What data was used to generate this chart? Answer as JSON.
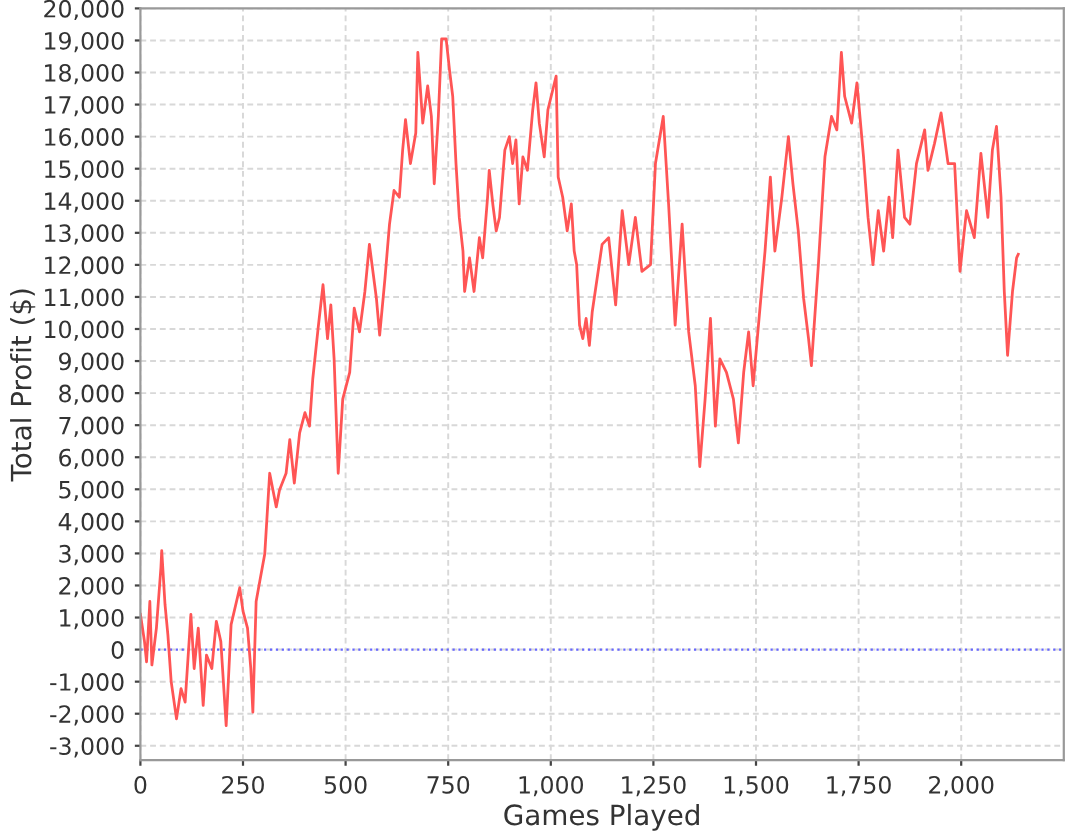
{
  "chart_data": {
    "type": "line",
    "xlabel": "Games Played",
    "ylabel": "Total Profit ($)",
    "xlim": [
      0,
      2250
    ],
    "ylim": [
      -3450,
      20000
    ],
    "xticks": [
      0,
      250,
      500,
      750,
      {
        "value": 1000,
        "label": "1,000"
      },
      {
        "value": 1250,
        "label": "1,250"
      },
      {
        "value": 1500,
        "label": "1,500"
      },
      {
        "value": 1750,
        "label": "1,750"
      },
      {
        "value": 2000,
        "label": "2,000"
      }
    ],
    "yticks": [
      {
        "value": -3000,
        "label": "-3,000"
      },
      {
        "value": -2000,
        "label": "-2,000"
      },
      {
        "value": -1000,
        "label": "-1,000"
      },
      0,
      {
        "value": 1000,
        "label": "1,000"
      },
      {
        "value": 2000,
        "label": "2,000"
      },
      {
        "value": 3000,
        "label": "3,000"
      },
      {
        "value": 4000,
        "label": "4,000"
      },
      {
        "value": 5000,
        "label": "5,000"
      },
      {
        "value": 6000,
        "label": "6,000"
      },
      {
        "value": 7000,
        "label": "7,000"
      },
      {
        "value": 8000,
        "label": "8,000"
      },
      {
        "value": 9000,
        "label": "9,000"
      },
      {
        "value": 10000,
        "label": "10,000"
      },
      {
        "value": 11000,
        "label": "11,000"
      },
      {
        "value": 12000,
        "label": "12,000"
      },
      {
        "value": 13000,
        "label": "13,000"
      },
      {
        "value": 14000,
        "label": "14,000"
      },
      {
        "value": 15000,
        "label": "15,000"
      },
      {
        "value": 16000,
        "label": "16,000"
      },
      {
        "value": 17000,
        "label": "17,000"
      },
      {
        "value": 18000,
        "label": "18,000"
      },
      {
        "value": 19000,
        "label": "19,000"
      },
      {
        "value": 20000,
        "label": "20,000"
      }
    ],
    "grid": true,
    "line_style": "solid",
    "marker": "none",
    "ref_lines": [
      {
        "axis": "y",
        "value": 0,
        "color": "#6666ff",
        "line_style": "dotted"
      }
    ],
    "series": [
      {
        "color": "#ff5555",
        "x": [
          0,
          10,
          15,
          23,
          28,
          39,
          50,
          52,
          60,
          67,
          75,
          88,
          99,
          109,
          123,
          131,
          141,
          153,
          161,
          174,
          185,
          196,
          209,
          221,
          242,
          250,
          261,
          269,
          274,
          282,
          291,
          303,
          315,
          331,
          339,
          355,
          364,
          375,
          388,
          401,
          412,
          420,
          433,
          445,
          456,
          464,
          472,
          482,
          493,
          510,
          521,
          534,
          547,
          558,
          575,
          583,
          596,
          607,
          618,
          631,
          639,
          646,
          658,
          671,
          676,
          688,
          700,
          709,
          716,
          726,
          734,
          745,
          753,
          761,
          769,
          777,
          786,
          790,
          802,
          813,
          826,
          834,
          846,
          850,
          859,
          867,
          875,
          888,
          899,
          907,
          915,
          923,
          932,
          943,
          956,
          964,
          972,
          984,
          993,
          1001,
          1013,
          1018,
          1029,
          1040,
          1050,
          1057,
          1063,
          1070,
          1078,
          1086,
          1094,
          1101,
          1125,
          1141,
          1158,
          1174,
          1190,
          1206,
          1222,
          1243,
          1255,
          1274,
          1287,
          1303,
          1320,
          1336,
          1352,
          1363,
          1376,
          1389,
          1401,
          1412,
          1428,
          1445,
          1457,
          1470,
          1482,
          1493,
          1506,
          1522,
          1535,
          1546,
          1563,
          1579,
          1590,
          1603,
          1616,
          1628,
          1635,
          1652,
          1668,
          1684,
          1697,
          1708,
          1716,
          1733,
          1746,
          1762,
          1773,
          1785,
          1798,
          1811,
          1824,
          1833,
          1846,
          1862,
          1875,
          1891,
          1911,
          1919,
          1935,
          1951,
          1968,
          1984,
          1997,
          2013,
          2032,
          2048,
          2065,
          2076,
          2086,
          2097,
          2105,
          2113,
          2125,
          2135,
          2139
        ],
        "values": [
          1100,
          250,
          -380,
          1500,
          -480,
          670,
          2560,
          3090,
          1400,
          460,
          -1000,
          -2160,
          -1220,
          -1640,
          1100,
          -590,
          670,
          -1740,
          -170,
          -590,
          880,
          250,
          -2370,
          780,
          1930,
          1200,
          670,
          -590,
          -1950,
          1500,
          2140,
          2980,
          5500,
          4450,
          4980,
          5500,
          6550,
          5190,
          6760,
          7390,
          6970,
          8440,
          10020,
          11380,
          9700,
          10750,
          9070,
          5500,
          7810,
          8650,
          10650,
          9910,
          11170,
          12640,
          10960,
          9810,
          11590,
          13270,
          14320,
          14110,
          15580,
          16530,
          15160,
          16110,
          18630,
          16420,
          17580,
          16630,
          14530,
          16630,
          19050,
          19050,
          18100,
          17260,
          15160,
          13480,
          12430,
          11170,
          12220,
          11170,
          12850,
          12220,
          14110,
          14950,
          13860,
          13060,
          13480,
          15580,
          16000,
          15160,
          15900,
          13900,
          15370,
          14950,
          16840,
          17680,
          16420,
          15370,
          16840,
          17260,
          17890,
          14740,
          14110,
          13060,
          13900,
          12430,
          12010,
          10120,
          9700,
          10330,
          9490,
          10540,
          12640,
          12850,
          10750,
          13690,
          12010,
          13480,
          11800,
          12010,
          15160,
          16630,
          13900,
          10120,
          13270,
          9910,
          8230,
          5710,
          7810,
          10330,
          6970,
          9070,
          8650,
          7810,
          6450,
          8650,
          9910,
          8230,
          10120,
          12430,
          14740,
          12430,
          14110,
          16000,
          14530,
          13060,
          10960,
          9700,
          8860,
          12010,
          15370,
          16630,
          16210,
          18630,
          17260,
          16420,
          17680,
          15370,
          13480,
          12010,
          13690,
          12430,
          14110,
          12850,
          15580,
          13480,
          13270,
          15160,
          16210,
          14950,
          15790,
          16740,
          15160,
          15160,
          11800,
          13690,
          12850,
          15480,
          13480,
          15580,
          16320,
          14110,
          11170,
          9180,
          11170,
          12220,
          12330
        ]
      }
    ]
  }
}
